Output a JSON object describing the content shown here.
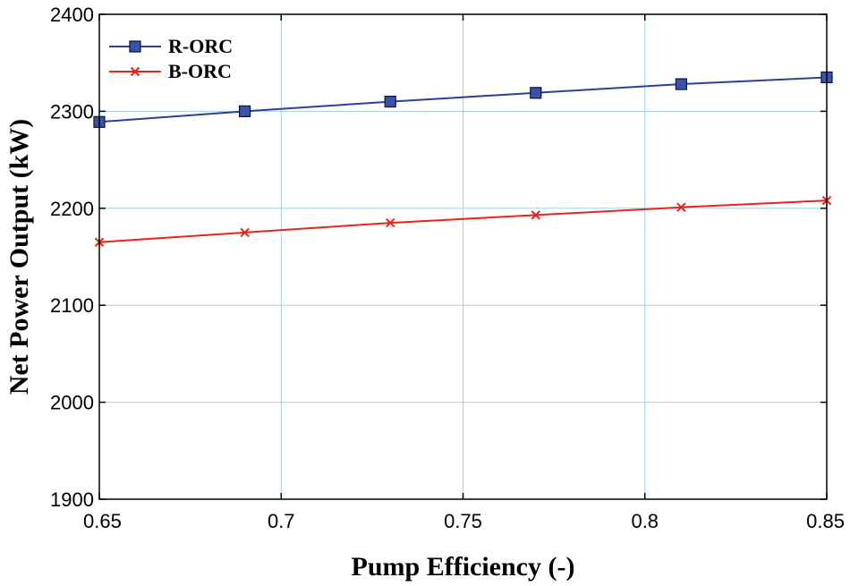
{
  "chart_data": {
    "type": "line",
    "title": "",
    "xlabel": "Pump Efficiency (-)",
    "ylabel": "Net Power Output (kW)",
    "xlim": [
      0.65,
      0.85
    ],
    "ylim": [
      1900,
      2400
    ],
    "xticks": [
      0.65,
      0.7,
      0.75,
      0.8,
      0.85
    ],
    "xtick_labels": [
      "0.65",
      "0.7",
      "0.75",
      "0.8",
      "0.85"
    ],
    "yticks": [
      1900,
      2000,
      2100,
      2200,
      2300,
      2400
    ],
    "ytick_labels": [
      "1900",
      "2000",
      "2100",
      "2200",
      "2300",
      "2400"
    ],
    "grid": true,
    "legend_position": "top-left",
    "x": [
      0.65,
      0.69,
      0.73,
      0.77,
      0.81,
      0.85
    ],
    "series": [
      {
        "name": "R-ORC",
        "color": "#2e3e9a",
        "marker": "square",
        "values": [
          2289,
          2300,
          2310,
          2319,
          2328,
          2335
        ]
      },
      {
        "name": "B-ORC",
        "color": "#e8231c",
        "marker": "x",
        "values": [
          2165,
          2175,
          2185,
          2193,
          2201,
          2208
        ]
      }
    ]
  },
  "colors": {
    "grid": "#9fd3e6",
    "axis": "#000000",
    "marker_fill_square": "#3a52a8"
  }
}
